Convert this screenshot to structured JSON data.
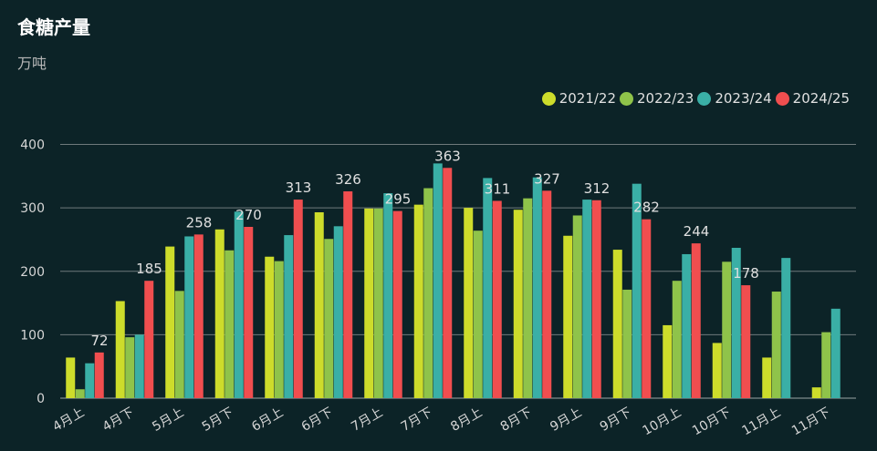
{
  "chart_data": {
    "type": "bar",
    "title": "食糖产量",
    "subtitle": "万吨",
    "categories": [
      "4月上",
      "4月下",
      "5月上",
      "5月下",
      "6月上",
      "6月下",
      "7月上",
      "7月下",
      "8月上",
      "8月下",
      "9月上",
      "9月下",
      "10月上",
      "10月下",
      "11月上",
      "11月下"
    ],
    "series": [
      {
        "name": "2021/22",
        "color": "#cddc2b",
        "values": [
          64,
          153,
          239,
          266,
          223,
          293,
          299,
          305,
          300,
          297,
          256,
          234,
          115,
          87,
          64,
          17
        ]
      },
      {
        "name": "2022/23",
        "color": "#8fc34a",
        "values": [
          14,
          96,
          169,
          233,
          216,
          251,
          299,
          331,
          264,
          315,
          288,
          171,
          185,
          215,
          168,
          104
        ]
      },
      {
        "name": "2023/24",
        "color": "#3aafa6",
        "values": [
          55,
          100,
          255,
          294,
          257,
          271,
          323,
          370,
          347,
          348,
          313,
          338,
          227,
          237,
          221,
          141
        ]
      },
      {
        "name": "2024/25",
        "color": "#f04e4f",
        "values": [
          72,
          185,
          258,
          270,
          313,
          326,
          295,
          363,
          311,
          327,
          312,
          282,
          244,
          178,
          null,
          null
        ]
      }
    ],
    "labeled_series": "2024/25",
    "data_labels": [
      "72",
      "185",
      "258",
      "270",
      "313",
      "326",
      "295",
      "363",
      "311",
      "327",
      "312",
      "282",
      "244",
      "178",
      "",
      ""
    ],
    "y_ticks": [
      "0",
      "100",
      "200",
      "300",
      "400"
    ],
    "ylim": [
      0,
      400
    ],
    "grid": true,
    "legend_position": "top-right",
    "xlabel": "",
    "ylabel": ""
  }
}
